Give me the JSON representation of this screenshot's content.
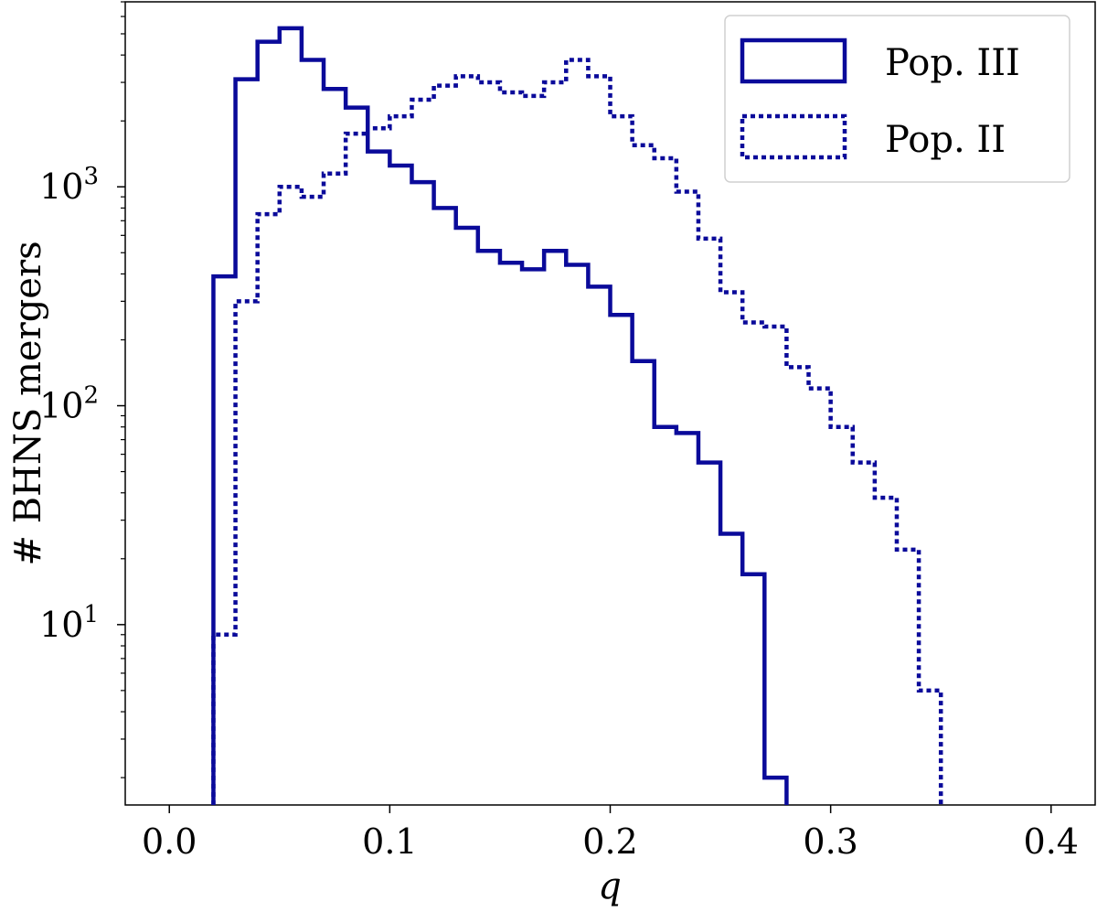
{
  "chart_data": {
    "type": "histogram",
    "xlabel": "q",
    "ylabel": "# BHNS mergers",
    "xlim": [
      -0.02,
      0.42
    ],
    "ylim": [
      1.5,
      7000
    ],
    "yscale": "log",
    "grid": false,
    "legend_position": "top-right",
    "x_ticks": [
      0.0,
      0.1,
      0.2,
      0.3,
      0.4
    ],
    "x_tick_labels": [
      "0.0",
      "0.1",
      "0.2",
      "0.3",
      "0.4"
    ],
    "y_ticks": [
      {
        "value": 10,
        "base": "10",
        "exp": "1"
      },
      {
        "value": 100,
        "base": "10",
        "exp": "2"
      },
      {
        "value": 1000,
        "base": "10",
        "exp": "3"
      }
    ],
    "bin_edges": [
      0.02,
      0.03,
      0.04,
      0.05,
      0.06,
      0.07,
      0.08,
      0.09,
      0.1,
      0.11,
      0.12,
      0.13,
      0.14,
      0.15,
      0.16,
      0.17,
      0.18,
      0.19,
      0.2,
      0.21,
      0.22,
      0.23,
      0.24,
      0.25,
      0.26,
      0.27,
      0.28,
      0.29,
      0.3,
      0.31,
      0.32,
      0.33,
      0.34,
      0.35
    ],
    "series": [
      {
        "name": "Pop. III",
        "style": "solid",
        "color": "#0a0a9a",
        "values": [
          390,
          3100,
          4600,
          5300,
          3800,
          2800,
          2300,
          1450,
          1250,
          1050,
          800,
          650,
          510,
          450,
          420,
          510,
          440,
          350,
          260,
          160,
          80,
          75,
          55,
          26,
          17,
          2,
          0,
          0,
          0,
          0,
          0,
          0,
          0
        ]
      },
      {
        "name": "Pop. II",
        "style": "dotted",
        "color": "#0a0a9a",
        "values": [
          9,
          300,
          750,
          1000,
          900,
          1150,
          1750,
          1850,
          2100,
          2500,
          2900,
          3200,
          3000,
          2700,
          2600,
          3000,
          3800,
          3200,
          2100,
          1550,
          1350,
          950,
          580,
          330,
          240,
          230,
          150,
          120,
          80,
          55,
          38,
          22,
          5
        ]
      }
    ]
  }
}
